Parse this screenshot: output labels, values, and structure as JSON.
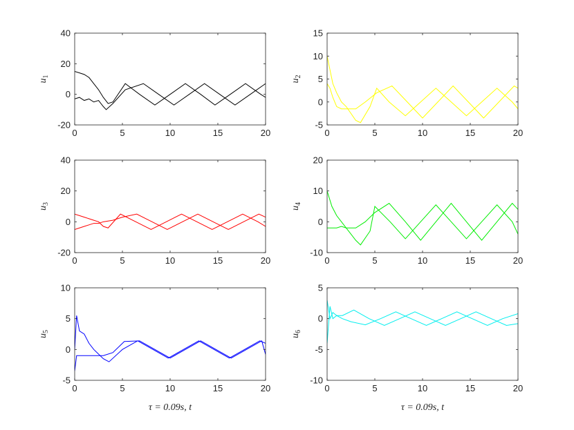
{
  "chart_data": [
    {
      "type": "line",
      "ylabel": "u",
      "ylabel_sub": "1",
      "xlim": [
        0,
        20
      ],
      "ylim": [
        -20,
        40
      ],
      "xticks": [
        0,
        5,
        10,
        15,
        20
      ],
      "yticks": [
        -20,
        0,
        20,
        40
      ],
      "color": "#000000",
      "series": [
        {
          "x": [
            0,
            0.5,
            1,
            1.5,
            2,
            2.5,
            3,
            3.5,
            4,
            5.3,
            6.8,
            8.4,
            10,
            11.6,
            13.2,
            14.7,
            16.3,
            17.9,
            19.5,
            20
          ],
          "y": [
            15,
            14,
            13,
            11,
            7,
            3,
            -2,
            -6,
            -5,
            7,
            0,
            -7,
            0,
            7,
            0,
            -7,
            0,
            7,
            0,
            -2
          ]
        },
        {
          "x": [
            0,
            0.5,
            1,
            1.5,
            2,
            2.5,
            3,
            3.3,
            4,
            5.3,
            7.2,
            8.8,
            10.4,
            12,
            13.6,
            15.2,
            16.8,
            18.4,
            20
          ],
          "y": [
            -3,
            -2,
            -4,
            -3,
            -5,
            -4,
            -8,
            -10,
            -6,
            3,
            7,
            0,
            -7,
            0,
            7,
            0,
            -7,
            0,
            7
          ]
        }
      ]
    },
    {
      "type": "line",
      "ylabel": "u",
      "ylabel_sub": "2",
      "xlim": [
        0,
        20
      ],
      "ylim": [
        -5,
        15
      ],
      "xticks": [
        0,
        5,
        10,
        15,
        20
      ],
      "yticks": [
        -5,
        0,
        5,
        10,
        15
      ],
      "color": "#ffff00",
      "series": [
        {
          "x": [
            0,
            0.3,
            0.6,
            1,
            1.5,
            2,
            2.5,
            3,
            3.5,
            4.5,
            5.2,
            6.5,
            8.2,
            9.8,
            11.4,
            13,
            14.6,
            16.2,
            17.8,
            19.4,
            20
          ],
          "y": [
            10,
            7,
            4,
            2,
            0,
            -1,
            -2.5,
            -4,
            -4.5,
            -1,
            3,
            0,
            -3,
            0,
            3,
            0,
            -3,
            0,
            3,
            0,
            -1.5
          ]
        },
        {
          "x": [
            0,
            0.3,
            0.6,
            1,
            1.5,
            2,
            3,
            4,
            5.2,
            6.8,
            8.4,
            10,
            11.6,
            13.2,
            14.8,
            16.4,
            18,
            19.6,
            20
          ],
          "y": [
            4,
            3,
            1,
            -1,
            -1.5,
            -1.5,
            -1.5,
            0,
            2,
            3.5,
            0,
            -3.5,
            0,
            3.5,
            0,
            -3.5,
            0,
            3.5,
            3
          ]
        }
      ]
    },
    {
      "type": "line",
      "ylabel": "u",
      "ylabel_sub": "3",
      "xlim": [
        0,
        20
      ],
      "ylim": [
        -20,
        40
      ],
      "xticks": [
        0,
        5,
        10,
        15,
        20
      ],
      "yticks": [
        -20,
        0,
        20,
        40
      ],
      "color": "#ff0000",
      "series": [
        {
          "x": [
            0,
            0.5,
            1,
            1.5,
            2,
            2.5,
            3,
            3.5,
            4.8,
            6.4,
            8,
            9.6,
            11.2,
            12.8,
            14.4,
            16,
            17.6,
            19.2,
            20
          ],
          "y": [
            5,
            4,
            3,
            2,
            1,
            0,
            -3,
            -4,
            5,
            0,
            -5,
            0,
            5,
            0,
            -5,
            0,
            5,
            0,
            -3
          ]
        },
        {
          "x": [
            0,
            0.5,
            1,
            1.5,
            2,
            2.5,
            3,
            4,
            5,
            6.5,
            8.1,
            9.7,
            11.3,
            12.9,
            14.5,
            16.1,
            17.7,
            19.3,
            20
          ],
          "y": [
            -5,
            -4,
            -3,
            -2,
            -1,
            -1,
            0,
            1,
            3,
            5,
            0,
            -5,
            0,
            5,
            0,
            -5,
            0,
            5,
            3
          ]
        }
      ]
    },
    {
      "type": "line",
      "ylabel": "u",
      "ylabel_sub": "4",
      "xlim": [
        0,
        20
      ],
      "ylim": [
        -10,
        20
      ],
      "xticks": [
        0,
        5,
        10,
        15,
        20
      ],
      "yticks": [
        -10,
        0,
        10,
        20
      ],
      "color": "#00ee00",
      "series": [
        {
          "x": [
            0,
            0.5,
            1,
            1.5,
            2,
            2.5,
            3,
            3.5,
            4.5,
            5,
            6.6,
            8.2,
            9.8,
            11.4,
            13,
            14.6,
            16.2,
            17.8,
            19.4,
            20
          ],
          "y": [
            10,
            5,
            2,
            0,
            -2,
            -4,
            -6,
            -7.5,
            -3,
            5,
            0,
            -5.5,
            0,
            5.5,
            0,
            -5.5,
            0,
            5.5,
            0,
            -4
          ]
        },
        {
          "x": [
            0,
            0.5,
            1,
            1.5,
            2,
            3,
            4,
            5,
            6.5,
            8.2,
            9.8,
            11.4,
            13,
            14.6,
            16.2,
            17.8,
            19.4,
            20
          ],
          "y": [
            -2,
            -2,
            -2,
            -1.5,
            -2,
            -2,
            0,
            3,
            6,
            0,
            -6,
            0,
            6,
            0,
            -6,
            0,
            6,
            4
          ]
        }
      ]
    },
    {
      "type": "line",
      "ylabel": "u",
      "ylabel_sub": "5",
      "xlim": [
        0,
        20
      ],
      "ylim": [
        -5,
        10
      ],
      "xticks": [
        0,
        5,
        10,
        15,
        20
      ],
      "yticks": [
        -5,
        0,
        5,
        10
      ],
      "color": "#0000ff",
      "series": [
        {
          "x": [
            0,
            0.2,
            0.5,
            1,
            1.5,
            2,
            3,
            3.6,
            5,
            6.6,
            8.2,
            9.8,
            11.4,
            13,
            14.6,
            16.2,
            17.8,
            19.4,
            20
          ],
          "y": [
            0,
            5.5,
            3,
            2.5,
            1,
            0,
            -1.5,
            -2,
            0,
            1.4,
            0,
            -1.4,
            0,
            1.4,
            0,
            -1.4,
            0,
            1.4,
            1
          ]
        },
        {
          "x": [
            0,
            0.2,
            0.5,
            1,
            1.5,
            2,
            3,
            4,
            5.2,
            6.8,
            8.4,
            10,
            11.6,
            13.2,
            14.8,
            16.4,
            18,
            19.6,
            20
          ],
          "y": [
            -3.5,
            -1,
            -1,
            -1,
            -1,
            -1,
            -1,
            -0.5,
            1.3,
            1.4,
            0,
            -1.4,
            0,
            1.4,
            0,
            -1.4,
            0,
            1.4,
            -0.8
          ]
        }
      ]
    },
    {
      "type": "line",
      "ylabel": "u",
      "ylabel_sub": "6",
      "xlim": [
        0,
        20
      ],
      "ylim": [
        -10,
        5
      ],
      "xticks": [
        0,
        5,
        10,
        15,
        20
      ],
      "yticks": [
        -10,
        -5,
        0,
        5
      ],
      "color": "#00eeee",
      "series": [
        {
          "x": [
            0,
            0.3,
            0.6,
            1,
            1.6,
            2.8,
            4.4,
            6,
            7.6,
            9.2,
            10.8,
            12.4,
            14,
            15.6,
            17.2,
            18.8,
            20
          ],
          "y": [
            -4,
            2,
            0,
            0.5,
            0.5,
            1.4,
            0,
            -1.1,
            0,
            1.1,
            0,
            -1.1,
            0,
            1.1,
            0,
            -1.1,
            -0.8
          ]
        },
        {
          "x": [
            0,
            0.3,
            0.6,
            1,
            1.6,
            2.5,
            4,
            5.6,
            7.2,
            8.8,
            10.4,
            12,
            13.6,
            15.2,
            16.8,
            18.4,
            20
          ],
          "y": [
            3,
            0,
            1,
            0.5,
            0,
            -0.5,
            -1,
            0,
            1.1,
            0,
            -1.1,
            0,
            1.1,
            0,
            -1.1,
            0,
            0.8
          ]
        }
      ]
    }
  ],
  "xlabel_left": "τ = 0.09s, t",
  "xlabel_right": "τ = 0.09s, t"
}
